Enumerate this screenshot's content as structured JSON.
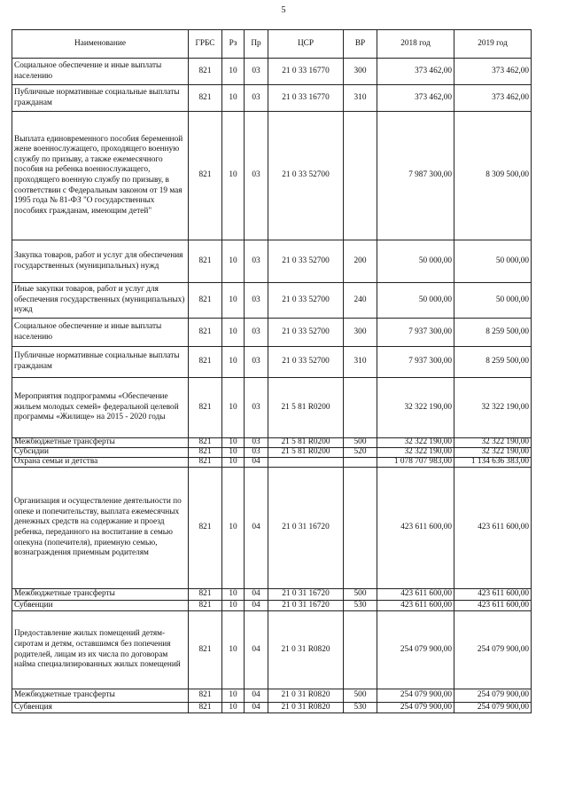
{
  "page_number": "5",
  "table": {
    "headers": [
      "Наименование",
      "ГРБС",
      "Рз",
      "Пр",
      "ЦСР",
      "ВР",
      "2018 год",
      "2019 год"
    ],
    "rows": [
      [
        "Социальное обеспечение и иные выплаты населению",
        "821",
        "10",
        "03",
        "21 0 33 16770",
        "300",
        "373 462,00",
        "373 462,00"
      ],
      [
        "Публичные нормативные социальные выплаты гражданам",
        "821",
        "10",
        "03",
        "21 0 33 16770",
        "310",
        "373 462,00",
        "373 462,00"
      ],
      [
        "Выплата единовременного пособия беременной жене военнослужащего, проходящего военную службу по призыву, а также ежемесячного пособия на ребенка военнослужащего, проходящего военную службу по призыву, в соответствии с Федеральным законом от 19 мая 1995 года № 81-ФЗ \"О государственных пособиях гражданам, имеющим детей\"",
        "821",
        "10",
        "03",
        "21 0 33 52700",
        "",
        "7 987 300,00",
        "8 309 500,00"
      ],
      [
        "Закупка товаров, работ и услуг для обеспечения государственных (муниципальных) нужд",
        "821",
        "10",
        "03",
        "21 0 33 52700",
        "200",
        "50 000,00",
        "50 000,00"
      ],
      [
        "Иные закупки товаров, работ и услуг для обеспечения государственных (муниципальных) нужд",
        "821",
        "10",
        "03",
        "21 0 33 52700",
        "240",
        "50 000,00",
        "50 000,00"
      ],
      [
        "Социальное обеспечение и иные выплаты населению",
        "821",
        "10",
        "03",
        "21 0 33 52700",
        "300",
        "7 937 300,00",
        "8 259 500,00"
      ],
      [
        "Публичные нормативные социальные выплаты гражданам",
        "821",
        "10",
        "03",
        "21 0 33 52700",
        "310",
        "7 937 300,00",
        "8 259 500,00"
      ],
      [
        "Мероприятия  подпрограммы «Обеспечение жильем молодых семей» федеральной целевой программы «Жилище» на 2015 - 2020 годы",
        "821",
        "10",
        "03",
        "21 5 81 R0200",
        "",
        "32 322 190,00",
        "32 322 190,00"
      ],
      [
        "Межбюджетные трансферты",
        "821",
        "10",
        "03",
        "21 5 81 R0200",
        "500",
        "32 322 190,00",
        "32 322 190,00"
      ],
      [
        "Субсидии",
        "821",
        "10",
        "03",
        "21 5 81 R0200",
        "520",
        "32 322 190,00",
        "32 322 190,00"
      ],
      [
        "Охрана семьи и детства",
        "821",
        "10",
        "04",
        "",
        "",
        "1 078 707 983,00",
        "1 134 636 383,00"
      ],
      [
        "Организация и осуществление деятельности по опеке и попечительству, выплата ежемесячных денежных средств на содержание и проезд ребенка, переданного на воспитание в семью опекуна (попечителя), приемную семью, вознаграждения приемным родителям",
        "821",
        "10",
        "04",
        "21 0 31 16720",
        "",
        "423 611 600,00",
        "423 611 600,00"
      ],
      [
        "Межбюджетные трансферты",
        "821",
        "10",
        "04",
        "21 0 31 16720",
        "500",
        "423 611 600,00",
        "423 611 600,00"
      ],
      [
        "Субвенции",
        "821",
        "10",
        "04",
        "21 0 31 16720",
        "530",
        "423 611 600,00",
        "423 611 600,00"
      ],
      [
        "Предоставление жилых помещений детям-сиротам и детям, оставшимся без попечения родителей, лицам из их числа по договорам найма специализированных жилых помещений",
        "821",
        "10",
        "04",
        "21 0 31 R0820",
        "",
        "254 079 900,00",
        "254 079 900,00"
      ],
      [
        "Межбюджетные трансферты",
        "821",
        "10",
        "04",
        "21 0 31 R0820",
        "500",
        "254 079 900,00",
        "254 079 900,00"
      ],
      [
        "Субвенция",
        "821",
        "10",
        "04",
        "21 0 31 R0820",
        "530",
        "254 079 900,00",
        "254 079 900,00"
      ]
    ]
  }
}
